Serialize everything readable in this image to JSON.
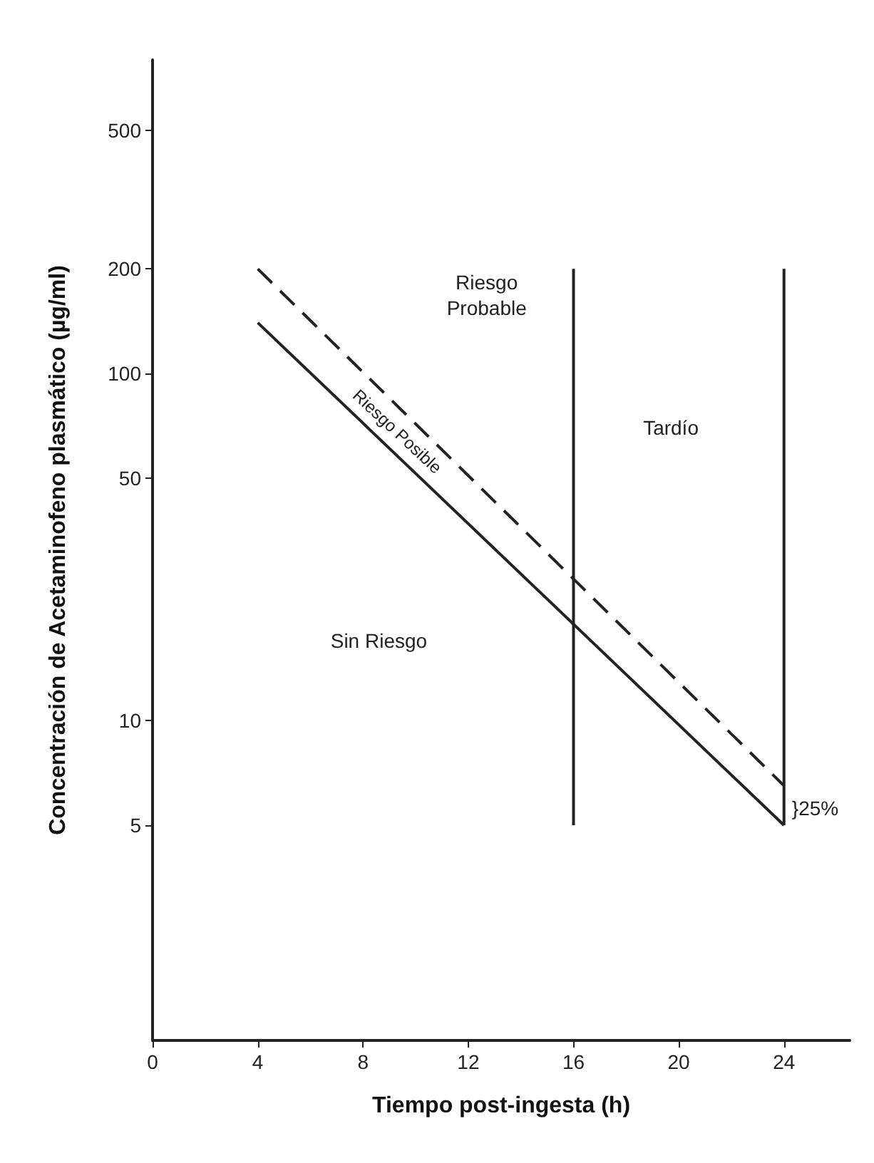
{
  "chart_data": {
    "type": "line",
    "xlabel": "Tiempo post-ingesta (h)",
    "ylabel": "Concentración de Acetaminofeno plasmático (µg/ml)",
    "log": "y",
    "xlim": [
      0,
      26.5
    ],
    "xticks": [
      0,
      4,
      8,
      12,
      16,
      20,
      24
    ],
    "ylim": [
      1.2,
      800
    ],
    "yticks": [
      5,
      10,
      50,
      100,
      200,
      500
    ],
    "grid": false,
    "marker": "none",
    "series": [
      {
        "x": [
          4,
          24
        ],
        "values": [
          200,
          6.5
        ],
        "color": "#222222",
        "line_style": "dashed"
      },
      {
        "x": [
          4,
          24
        ],
        "values": [
          140,
          5
        ],
        "color": "#222222",
        "line_style": "solid"
      },
      {
        "x": [
          16,
          16
        ],
        "values": [
          5,
          200
        ],
        "color": "#222222",
        "line_style": "solid"
      },
      {
        "x": [
          24,
          24
        ],
        "values": [
          5,
          200
        ],
        "color": "#222222",
        "line_style": "solid"
      }
    ],
    "annotations": [
      "Riesgo\nProbable",
      "Riesgo Posible",
      "Tardío",
      "Sin Riesgo",
      "}25%"
    ]
  }
}
